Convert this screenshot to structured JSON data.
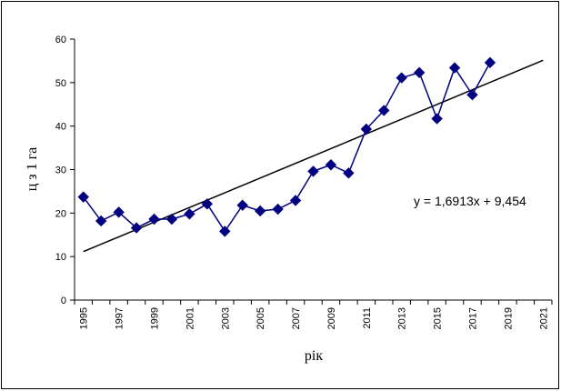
{
  "chart_data": {
    "type": "line",
    "xlabel": "рік",
    "ylabel": "ц з 1 га",
    "xlim": [
      1995,
      2021
    ],
    "ylim": [
      0,
      60
    ],
    "xticks": [
      1995,
      1997,
      1999,
      2001,
      2003,
      2005,
      2007,
      2009,
      2011,
      2013,
      2015,
      2017,
      2019,
      2021
    ],
    "yticks": [
      0,
      10,
      20,
      30,
      40,
      50,
      60
    ],
    "grid": false,
    "series": [
      {
        "x": [
          1995,
          1996,
          1997,
          1998,
          1999,
          2000,
          2001,
          2002,
          2003,
          2004,
          2005,
          2006,
          2007,
          2008,
          2009,
          2010,
          2011,
          2012,
          2013,
          2014,
          2015,
          2016,
          2017,
          2018
        ],
        "values": [
          23.7,
          18.2,
          20.2,
          16.6,
          18.6,
          18.6,
          19.8,
          22.1,
          15.8,
          21.8,
          20.5,
          20.9,
          22.9,
          29.6,
          31.1,
          29.2,
          39.3,
          43.6,
          51.1,
          52.3,
          41.7,
          53.4,
          47.2,
          54.6
        ],
        "color": "#000080",
        "marker": "diamond"
      }
    ],
    "trendline": {
      "slope": 1.6913,
      "intercept": 9.454,
      "x_start": 1995,
      "x_end": 2021,
      "equation_label": "y = 1,6913x + 9,454",
      "color": "#000000"
    }
  }
}
